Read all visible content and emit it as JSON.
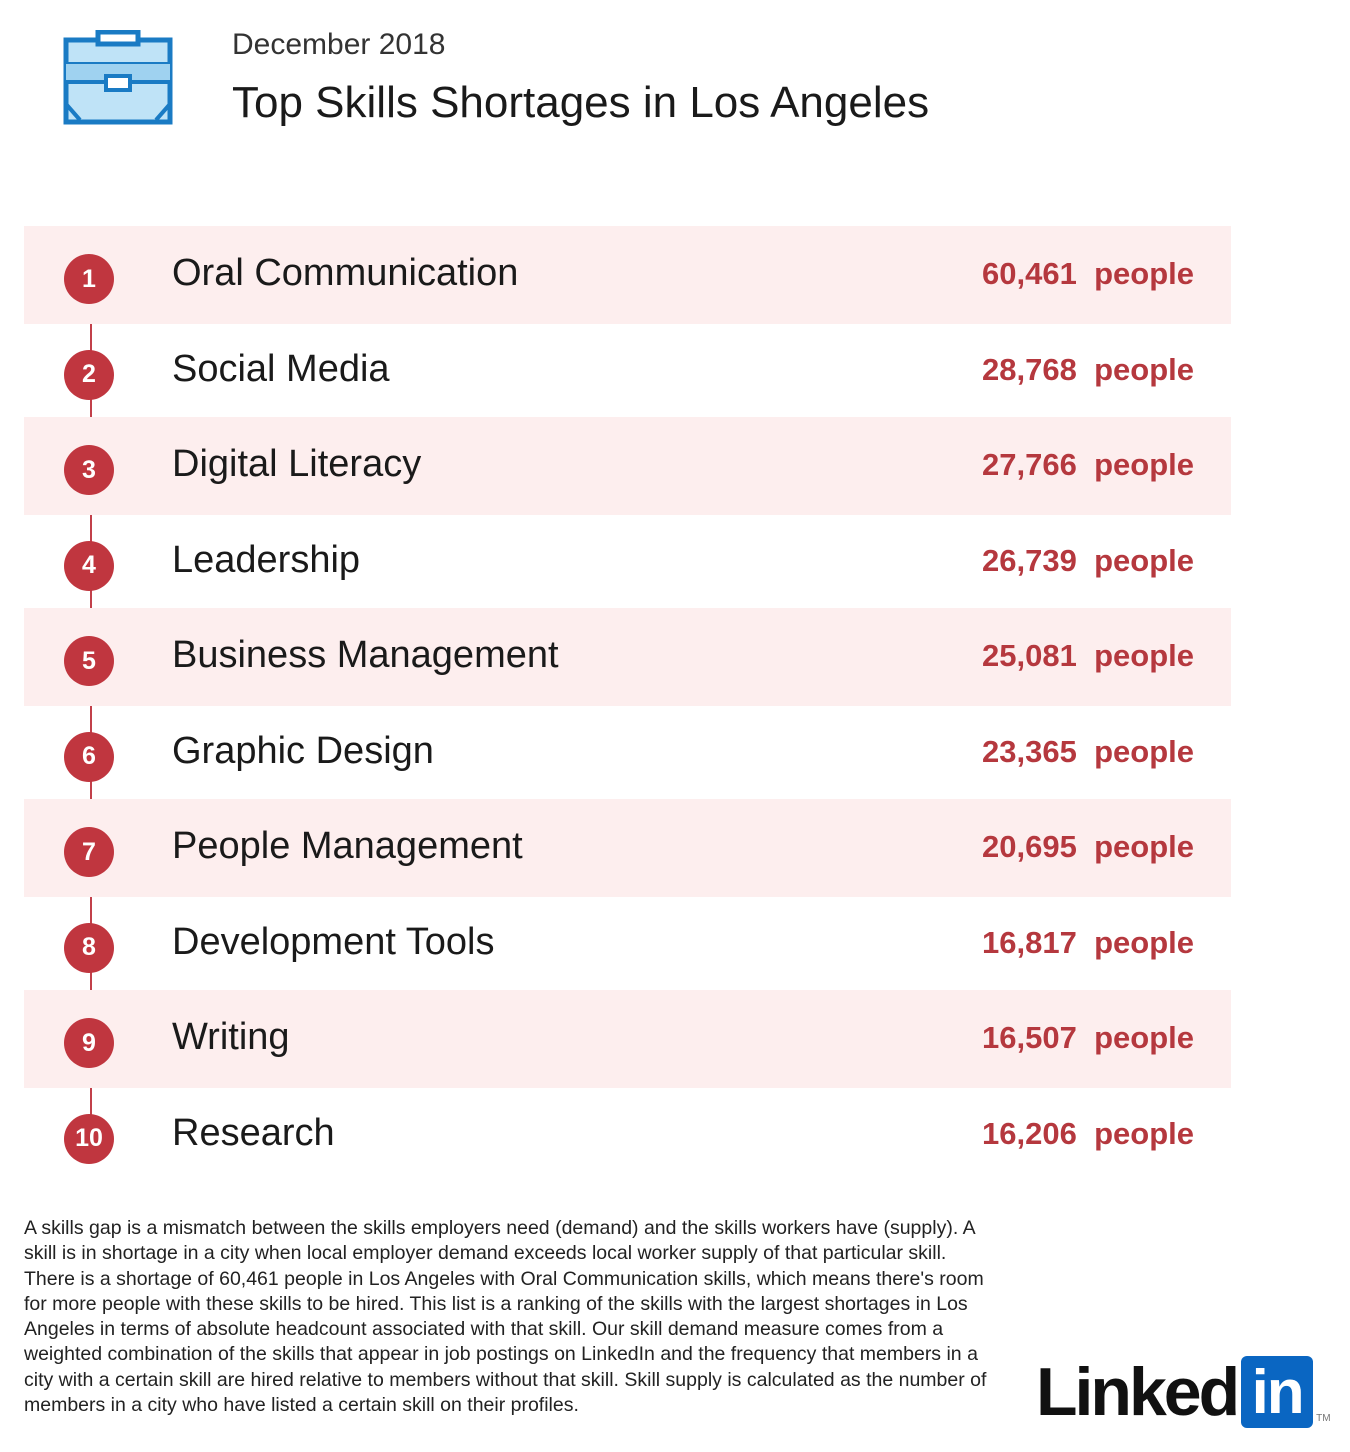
{
  "header": {
    "date": "December 2018",
    "title": "Top Skills Shortages in Los Angeles"
  },
  "chart_data": {
    "type": "table",
    "unit": "people",
    "rows": [
      {
        "rank": "1",
        "skill": "Oral Communication",
        "value": "60,461"
      },
      {
        "rank": "2",
        "skill": "Social Media",
        "value": "28,768"
      },
      {
        "rank": "3",
        "skill": "Digital Literacy",
        "value": "27,766"
      },
      {
        "rank": "4",
        "skill": "Leadership",
        "value": "26,739"
      },
      {
        "rank": "5",
        "skill": "Business Management",
        "value": "25,081"
      },
      {
        "rank": "6",
        "skill": "Graphic Design",
        "value": "23,365"
      },
      {
        "rank": "7",
        "skill": "People Management",
        "value": "20,695"
      },
      {
        "rank": "8",
        "skill": "Development Tools",
        "value": "16,817"
      },
      {
        "rank": "9",
        "skill": "Writing",
        "value": "16,507"
      },
      {
        "rank": "10",
        "skill": "Research",
        "value": "16,206"
      }
    ]
  },
  "footnote": "A skills gap is a mismatch between the skills employers need (demand) and the skills workers have (supply). A skill is in shortage in a city when local employer demand exceeds local worker supply of that particular skill. There is a shortage of 60,461 people in Los Angeles with Oral Communication skills, which means there's room for more people with these skills to be hired. This list is a ranking of the skills with the largest shortages in Los Angeles in terms of absolute headcount associated with that skill. Our skill demand measure comes from a weighted combination of the skills that appear in job postings on LinkedIn and the frequency that members in a city with a certain skill are hired relative to members without that skill. Skill supply is calculated as the number of members in a city who have listed a certain skill on their profiles.",
  "logo": {
    "text": "Linked",
    "box": "in",
    "tm": "TM"
  },
  "colors": {
    "accent": "#c0363f",
    "value": "#b5383e",
    "row_shade": "#fdeeee",
    "icon": "#1a7bc4",
    "logo_box": "#0a66c2"
  }
}
